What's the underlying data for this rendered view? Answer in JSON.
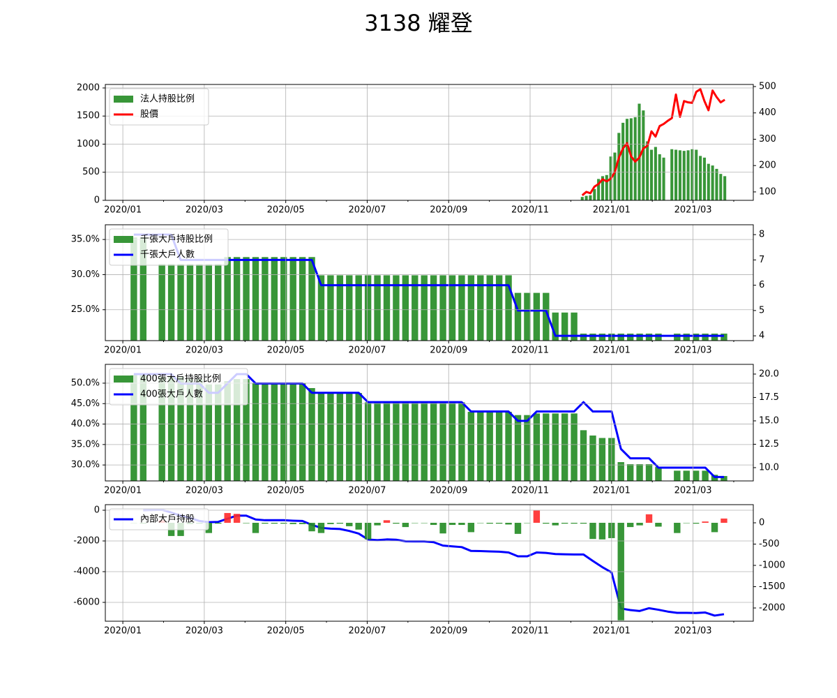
{
  "title": "3138 耀登",
  "chart_data": [
    {
      "type": "combo",
      "x": [
        11.28,
        11.38,
        11.48,
        11.58,
        11.68,
        11.78,
        11.88,
        11.98,
        12.08,
        12.18,
        12.28,
        12.38,
        12.48,
        12.58,
        12.68,
        12.78,
        12.88,
        12.98,
        13.08,
        13.18,
        13.28,
        13.38,
        13.48,
        13.58,
        13.68,
        13.78,
        13.88,
        13.98,
        14.08,
        14.18,
        14.28,
        14.38,
        14.48,
        14.58,
        14.68,
        14.78
      ],
      "xlim": [
        -0.43,
        15.48
      ],
      "xticks": [
        {
          "value": 0,
          "label": "2020/01"
        },
        {
          "value": 2,
          "label": "2020/03"
        },
        {
          "value": 4,
          "label": "2020/05"
        },
        {
          "value": 6,
          "label": "2020/07"
        },
        {
          "value": 8,
          "label": "2020/09"
        },
        {
          "value": 10,
          "label": "2020/11"
        },
        {
          "value": 12,
          "label": "2021/01"
        },
        {
          "value": 14,
          "label": "2021/03"
        }
      ],
      "xminorticks": [
        1,
        3,
        5,
        7,
        9,
        11,
        13,
        15
      ],
      "ylim": [
        0,
        2062
      ],
      "yticks": [
        0,
        500,
        1000,
        1500,
        2000
      ],
      "y2lim": [
        68,
        508
      ],
      "y2ticks": [
        100,
        200,
        300,
        400,
        500
      ],
      "grid": true,
      "legend": "upper left",
      "series": [
        {
          "name": "法人持股比例",
          "type": "bar",
          "color": "#228b22",
          "values": [
            60,
            80,
            90,
            200,
            380,
            430,
            450,
            780,
            850,
            1200,
            1380,
            1450,
            1460,
            1480,
            1720,
            1600,
            1050,
            900,
            950,
            820,
            760,
            null,
            910,
            900,
            890,
            880,
            890,
            910,
            900,
            790,
            760,
            650,
            620,
            560,
            470,
            430
          ]
        },
        {
          "name": "股價",
          "type": "line",
          "color": "#ff0000",
          "axis": "y2",
          "values": [
            87,
            100,
            95,
            120,
            130,
            148,
            140,
            150,
            175,
            230,
            265,
            285,
            235,
            215,
            230,
            265,
            275,
            330,
            310,
            350,
            358,
            370,
            380,
            470,
            385,
            445,
            440,
            438,
            480,
            490,
            445,
            410,
            485,
            460,
            440,
            450
          ]
        }
      ]
    },
    {
      "type": "combo",
      "x": [
        0.27,
        0.5,
        0.73,
        0.96,
        1.19,
        1.42,
        1.65,
        1.88,
        2.11,
        2.34,
        2.57,
        2.8,
        3.03,
        3.26,
        3.49,
        3.72,
        3.95,
        4.18,
        4.41,
        4.64,
        4.87,
        5.1,
        5.33,
        5.56,
        5.79,
        6.02,
        6.25,
        6.48,
        6.71,
        6.94,
        7.17,
        7.4,
        7.63,
        7.86,
        8.09,
        8.32,
        8.55,
        8.78,
        9.01,
        9.24,
        9.47,
        9.7,
        9.93,
        10.16,
        10.39,
        10.62,
        10.85,
        11.08,
        11.31,
        11.54,
        11.77,
        12.0,
        12.23,
        12.46,
        12.69,
        12.92,
        13.15,
        13.38,
        13.61,
        13.84,
        14.07,
        14.3,
        14.53,
        14.76
      ],
      "xlim": [
        -0.43,
        15.48
      ],
      "xticks": [
        {
          "value": 0,
          "label": "2020/01"
        },
        {
          "value": 2,
          "label": "2020/03"
        },
        {
          "value": 4,
          "label": "2020/05"
        },
        {
          "value": 6,
          "label": "2020/07"
        },
        {
          "value": 8,
          "label": "2020/09"
        },
        {
          "value": 10,
          "label": "2020/11"
        },
        {
          "value": 12,
          "label": "2021/01"
        },
        {
          "value": 14,
          "label": "2021/03"
        }
      ],
      "xminorticks": [
        1,
        3,
        5,
        7,
        9,
        11,
        13,
        15
      ],
      "ylim": [
        20.6,
        37.1
      ],
      "yticks": [
        {
          "value": 25,
          "label": "25.0%"
        },
        {
          "value": 30,
          "label": "30.0%"
        },
        {
          "value": 35,
          "label": "35.0%"
        }
      ],
      "y2lim": [
        3.81,
        8.39
      ],
      "y2ticks": [
        4,
        5,
        6,
        7,
        8
      ],
      "grid": true,
      "legend": "upper left",
      "series": [
        {
          "name": "千張大戶持股比例",
          "type": "bar",
          "color": "#228b22",
          "values": [
            35.3,
            35.3,
            null,
            31.5,
            31.5,
            31.5,
            31.5,
            31.5,
            31.5,
            31.5,
            32.5,
            32.5,
            32.5,
            32.5,
            32.5,
            32.5,
            32.5,
            32.5,
            32.5,
            32.5,
            29.9,
            29.9,
            29.9,
            29.9,
            29.9,
            29.9,
            29.9,
            29.9,
            29.9,
            29.9,
            29.9,
            29.9,
            29.9,
            29.9,
            29.9,
            29.9,
            29.9,
            29.9,
            29.9,
            29.9,
            29.9,
            27.4,
            27.4,
            27.4,
            27.4,
            24.6,
            24.6,
            24.6,
            21.6,
            21.6,
            21.6,
            21.6,
            21.6,
            21.6,
            21.6,
            21.6,
            21.6,
            null,
            21.6,
            21.6,
            21.6,
            21.6,
            21.6,
            21.6
          ]
        },
        {
          "name": "千張大戶人數",
          "type": "line",
          "color": "#0000ff",
          "axis": "y2",
          "values": [
            8,
            8,
            8,
            8,
            8,
            7,
            7,
            7,
            7,
            7,
            7,
            7,
            7,
            7,
            7,
            7,
            7,
            7,
            7,
            7,
            6,
            6,
            6,
            6,
            6,
            6,
            6,
            6,
            6,
            6,
            6,
            6,
            6,
            6,
            6,
            6,
            6,
            6,
            6,
            6,
            6,
            5,
            5,
            5,
            5,
            4,
            4,
            4,
            4,
            4,
            4,
            4,
            4,
            4,
            4,
            4,
            4,
            4,
            4,
            4,
            4,
            4,
            4,
            4
          ]
        }
      ]
    },
    {
      "type": "combo",
      "x": [
        0.27,
        0.5,
        0.73,
        0.96,
        1.19,
        1.42,
        1.65,
        1.88,
        2.11,
        2.34,
        2.57,
        2.8,
        3.03,
        3.26,
        3.49,
        3.72,
        3.95,
        4.18,
        4.41,
        4.64,
        4.87,
        5.1,
        5.33,
        5.56,
        5.79,
        6.02,
        6.25,
        6.48,
        6.71,
        6.94,
        7.17,
        7.4,
        7.63,
        7.86,
        8.09,
        8.32,
        8.55,
        8.78,
        9.01,
        9.24,
        9.47,
        9.7,
        9.93,
        10.16,
        10.39,
        10.62,
        10.85,
        11.08,
        11.31,
        11.54,
        11.77,
        12.0,
        12.23,
        12.46,
        12.69,
        12.92,
        13.15,
        13.38,
        13.61,
        13.84,
        14.07,
        14.3,
        14.53,
        14.76
      ],
      "xlim": [
        -0.43,
        15.48
      ],
      "xticks": [
        {
          "value": 0,
          "label": "2020/01"
        },
        {
          "value": 2,
          "label": "2020/03"
        },
        {
          "value": 4,
          "label": "2020/05"
        },
        {
          "value": 6,
          "label": "2020/07"
        },
        {
          "value": 8,
          "label": "2020/09"
        },
        {
          "value": 10,
          "label": "2020/11"
        },
        {
          "value": 12,
          "label": "2021/01"
        },
        {
          "value": 14,
          "label": "2021/03"
        }
      ],
      "xminorticks": [
        1,
        3,
        5,
        7,
        9,
        11,
        13,
        15
      ],
      "ylim": [
        26.1,
        54.6
      ],
      "yticks": [
        {
          "value": 30,
          "label": "30.0%"
        },
        {
          "value": 35,
          "label": "35.0%"
        },
        {
          "value": 40,
          "label": "40.0%"
        },
        {
          "value": 45,
          "label": "45.0%"
        },
        {
          "value": 50,
          "label": "50.0%"
        }
      ],
      "y2lim": [
        8.58,
        21.04
      ],
      "y2ticks": [
        {
          "value": 10,
          "label": "10.0"
        },
        12.5,
        {
          "value": 15,
          "label": "15.0"
        },
        17.5,
        {
          "value": 20,
          "label": "20.0"
        }
      ],
      "grid": true,
      "legend": "upper left",
      "series": [
        {
          "name": "400張大戶持股比例",
          "type": "bar",
          "color": "#228b22",
          "values": [
            52,
            52,
            null,
            51.5,
            51.5,
            51.5,
            51,
            51,
            49.7,
            49.7,
            50.5,
            51,
            51,
            50,
            50,
            50,
            50,
            50,
            50,
            48.8,
            47.6,
            47.6,
            47.6,
            47.6,
            47.6,
            45.3,
            45.3,
            45.3,
            45.3,
            45.3,
            45.3,
            45.3,
            45.3,
            45.3,
            45.3,
            45.3,
            43,
            43,
            43,
            43,
            43,
            42.2,
            42.2,
            42.6,
            42.6,
            42.6,
            42.6,
            42.6,
            38.5,
            37.2,
            36.6,
            36.6,
            30.7,
            30.2,
            30.2,
            30.2,
            29.5,
            null,
            28.6,
            28.6,
            28.6,
            28.6,
            27.6,
            27.3
          ]
        },
        {
          "name": "400張大戶人數",
          "type": "line",
          "color": "#0000ff",
          "axis": "y2",
          "values": [
            20,
            20,
            20,
            20,
            20,
            19,
            19,
            19,
            18,
            18,
            19,
            20,
            20,
            19,
            19,
            19,
            19,
            19,
            19,
            18,
            18,
            18,
            18,
            18,
            18,
            17,
            17,
            17,
            17,
            17,
            17,
            17,
            17,
            17,
            17,
            17,
            16,
            16,
            16,
            16,
            16,
            15,
            15,
            16,
            16,
            16,
            16,
            16,
            17,
            16,
            16,
            16,
            12,
            11,
            11,
            11,
            10,
            10,
            10,
            10,
            10,
            10,
            9,
            9
          ]
        }
      ]
    },
    {
      "type": "combo",
      "x": [
        0.27,
        0.5,
        0.73,
        0.96,
        1.19,
        1.42,
        1.65,
        1.88,
        2.11,
        2.34,
        2.57,
        2.8,
        3.03,
        3.26,
        3.49,
        3.72,
        3.95,
        4.18,
        4.41,
        4.64,
        4.87,
        5.1,
        5.33,
        5.56,
        5.79,
        6.02,
        6.25,
        6.48,
        6.71,
        6.94,
        7.17,
        7.4,
        7.63,
        7.86,
        8.09,
        8.32,
        8.55,
        8.78,
        9.01,
        9.24,
        9.47,
        9.7,
        9.93,
        10.16,
        10.39,
        10.62,
        10.85,
        11.08,
        11.31,
        11.54,
        11.77,
        12.0,
        12.23,
        12.46,
        12.69,
        12.92,
        13.15,
        13.38,
        13.61,
        13.84,
        14.07,
        14.3,
        14.53,
        14.76
      ],
      "xlim": [
        -0.43,
        15.48
      ],
      "xticks": [
        {
          "value": 0,
          "label": "2020/01"
        },
        {
          "value": 2,
          "label": "2020/03"
        },
        {
          "value": 4,
          "label": "2020/05"
        },
        {
          "value": 6,
          "label": "2020/07"
        },
        {
          "value": 8,
          "label": "2020/09"
        },
        {
          "value": 10,
          "label": "2020/11"
        },
        {
          "value": 12,
          "label": "2021/01"
        },
        {
          "value": 14,
          "label": "2021/03"
        }
      ],
      "xminorticks": [
        1,
        3,
        5,
        7,
        9,
        11,
        13,
        15
      ],
      "ylim": [
        -7227,
        364
      ],
      "yticks": [
        -6000,
        -4000,
        -2000,
        0
      ],
      "y2lim": [
        -2311,
        426
      ],
      "y2ticks": [
        -2000,
        -1500,
        -1000,
        -500,
        0
      ],
      "grid": true,
      "legend": "upper left",
      "series": [
        {
          "name": "內部大戶持股",
          "type": "line",
          "color": "#0000ff",
          "values": [
            null,
            0,
            20,
            30,
            -150,
            -350,
            -500,
            -700,
            -780,
            -760,
            -550,
            -350,
            -350,
            -600,
            -650,
            -650,
            -650,
            -680,
            -700,
            -950,
            -1150,
            -1200,
            -1220,
            -1350,
            -1520,
            -1900,
            -1950,
            -1900,
            -1920,
            -2020,
            -2030,
            -2030,
            -2080,
            -2300,
            -2350,
            -2400,
            -2650,
            -2660,
            -2680,
            -2700,
            -2750,
            -3000,
            -3000,
            -2750,
            -2780,
            -2850,
            -2870,
            -2880,
            -2880,
            -3300,
            -3700,
            -4050,
            -6400,
            -6500,
            -6560,
            -6380,
            -6480,
            -6600,
            -6680,
            -6680,
            -6690,
            -6660,
            -6860,
            -6770
          ]
        },
        {
          "type": "bar",
          "color": "#228b22",
          "positive_color": "#ff2a2a",
          "axis": "y2",
          "values": [
            0,
            -20,
            null,
            60,
            -310,
            -310,
            -30,
            -20,
            -240,
            -20,
            230,
            210,
            -10,
            -240,
            -20,
            -20,
            -20,
            -30,
            -30,
            -200,
            -240,
            -30,
            -20,
            -80,
            -160,
            -390,
            -60,
            60,
            -20,
            -100,
            0,
            0,
            -50,
            -250,
            -50,
            -50,
            -220,
            0,
            -20,
            -20,
            -40,
            -260,
            0,
            290,
            -20,
            -60,
            -20,
            -20,
            -20,
            -380,
            -390,
            -360,
            -2290,
            -100,
            -60,
            200,
            -90,
            null,
            -240,
            0,
            -20,
            30,
            -220,
            100
          ]
        }
      ]
    }
  ]
}
